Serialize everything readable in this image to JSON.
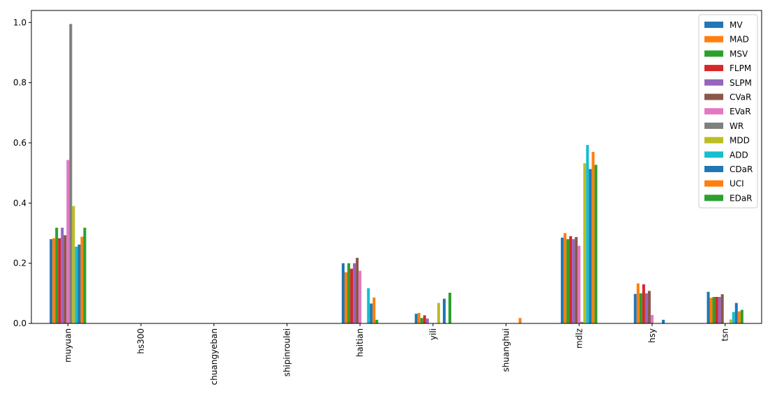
{
  "chart_data": {
    "type": "bar",
    "title": "",
    "xlabel": "",
    "ylabel": "",
    "ylim": [
      0,
      1.04
    ],
    "yticks": [
      "0.0",
      "0.2",
      "0.4",
      "0.6",
      "0.8",
      "1.0"
    ],
    "grid": false,
    "legend_position": "top-right",
    "categories": [
      "muyuan",
      "hs300",
      "chuangyeban",
      "shipinroulei",
      "haitian",
      "yili",
      "shuanghui",
      "mdlz",
      "hsy",
      "tsn"
    ],
    "series": [
      {
        "name": "MV",
        "color": "#1f77b4",
        "values": [
          0.28,
          0,
          0,
          0,
          0.2,
          0.032,
          0,
          0.285,
          0.098,
          0.105
        ]
      },
      {
        "name": "MAD",
        "color": "#ff7f0e",
        "values": [
          0.283,
          0,
          0,
          0,
          0.17,
          0.035,
          0,
          0.3,
          0.133,
          0.085
        ]
      },
      {
        "name": "MSV",
        "color": "#2ca02c",
        "values": [
          0.318,
          0,
          0,
          0,
          0.2,
          0.018,
          0,
          0.28,
          0.1,
          0.088
        ]
      },
      {
        "name": "FLPM",
        "color": "#d62728",
        "values": [
          0.283,
          0,
          0,
          0,
          0.182,
          0.027,
          0,
          0.29,
          0.13,
          0.088
        ]
      },
      {
        "name": "SLPM",
        "color": "#9467bd",
        "values": [
          0.318,
          0,
          0,
          0,
          0.2,
          0.016,
          0,
          0.28,
          0.1,
          0.088
        ]
      },
      {
        "name": "CVaR",
        "color": "#8c564b",
        "values": [
          0.293,
          0,
          0,
          0,
          0.218,
          0,
          0,
          0.287,
          0.108,
          0.097
        ]
      },
      {
        "name": "EVaR",
        "color": "#e377c2",
        "values": [
          0.543,
          0,
          0,
          0,
          0.175,
          0,
          0,
          0.258,
          0.028,
          0
        ]
      },
      {
        "name": "WR",
        "color": "#7f7f7f",
        "values": [
          0.995,
          0,
          0,
          0,
          0,
          0,
          0,
          0.005,
          0,
          0
        ]
      },
      {
        "name": "MDD",
        "color": "#bcbd22",
        "values": [
          0.39,
          0,
          0,
          0,
          0,
          0.068,
          0,
          0.532,
          0,
          0.013
        ]
      },
      {
        "name": "ADD",
        "color": "#17becf",
        "values": [
          0.255,
          0,
          0,
          0,
          0.117,
          0,
          0,
          0.593,
          0,
          0.038
        ]
      },
      {
        "name": "CDaR",
        "color": "#1f77b4",
        "values": [
          0.262,
          0,
          0,
          0,
          0.066,
          0.082,
          0,
          0.513,
          0.012,
          0.068
        ]
      },
      {
        "name": "UCI",
        "color": "#ff7f0e",
        "values": [
          0.288,
          0,
          0,
          0,
          0.086,
          0,
          0.018,
          0.57,
          0,
          0.04
        ]
      },
      {
        "name": "EDaR",
        "color": "#2ca02c",
        "values": [
          0.318,
          0,
          0,
          0,
          0.012,
          0.102,
          0,
          0.527,
          0,
          0.045
        ]
      }
    ]
  }
}
